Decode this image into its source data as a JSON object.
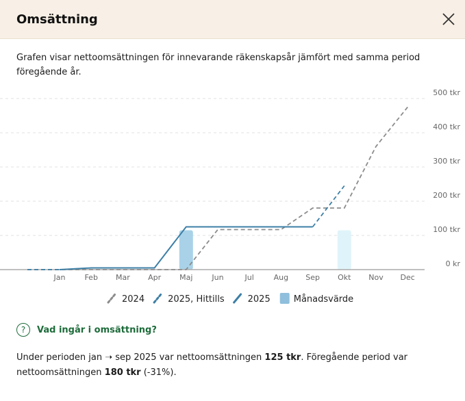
{
  "header": {
    "title": "Omsättning",
    "close_icon": "close-icon"
  },
  "description": "Grafen visar nettoomsättningen för innevarande räkenskapsår jämfört med samma period föregående år.",
  "chart_data": {
    "type": "line",
    "categories": [
      "Jan",
      "Feb",
      "Mar",
      "Apr",
      "Maj",
      "Jun",
      "Jul",
      "Aug",
      "Sep",
      "Okt",
      "Nov",
      "Dec"
    ],
    "y_ticks": [
      "0 kr",
      "100 tkr",
      "200 tkr",
      "300 tkr",
      "400 tkr",
      "500 tkr"
    ],
    "ylim": [
      0,
      500
    ],
    "grid": true,
    "legend_placement": "bottom",
    "series": [
      {
        "name": "2024",
        "style": "dashed",
        "color": "#8c8c8c",
        "values": [
          0,
          0,
          0,
          0,
          0,
          117,
          117,
          117,
          180,
          180,
          360,
          475
        ]
      },
      {
        "name": "2025, Hittills",
        "style": "dashed",
        "color": "#3d7fa6",
        "values": [
          null,
          null,
          null,
          null,
          null,
          null,
          null,
          null,
          125,
          245,
          null,
          null
        ]
      },
      {
        "name": "2025",
        "style": "solid",
        "color": "#3d7fa6",
        "values": [
          0,
          5,
          5,
          5,
          125,
          125,
          125,
          125,
          125,
          null,
          null,
          null
        ]
      },
      {
        "name": "Månadsvärde",
        "type": "bar",
        "color": "#8fbfdc",
        "values": [
          null,
          null,
          null,
          null,
          115,
          null,
          null,
          null,
          null,
          115,
          null,
          null
        ]
      }
    ]
  },
  "help": {
    "label": "Vad ingår i omsättning?",
    "icon": "question-circle-icon"
  },
  "summary": {
    "p1": "Under perioden jan ➝ sep 2025 var nettoomsättningen ",
    "v1": "125 tkr",
    "p2": ". Föregående period var nettoomsättningen ",
    "v2": "180 tkr",
    "p3": " (-31%)."
  }
}
